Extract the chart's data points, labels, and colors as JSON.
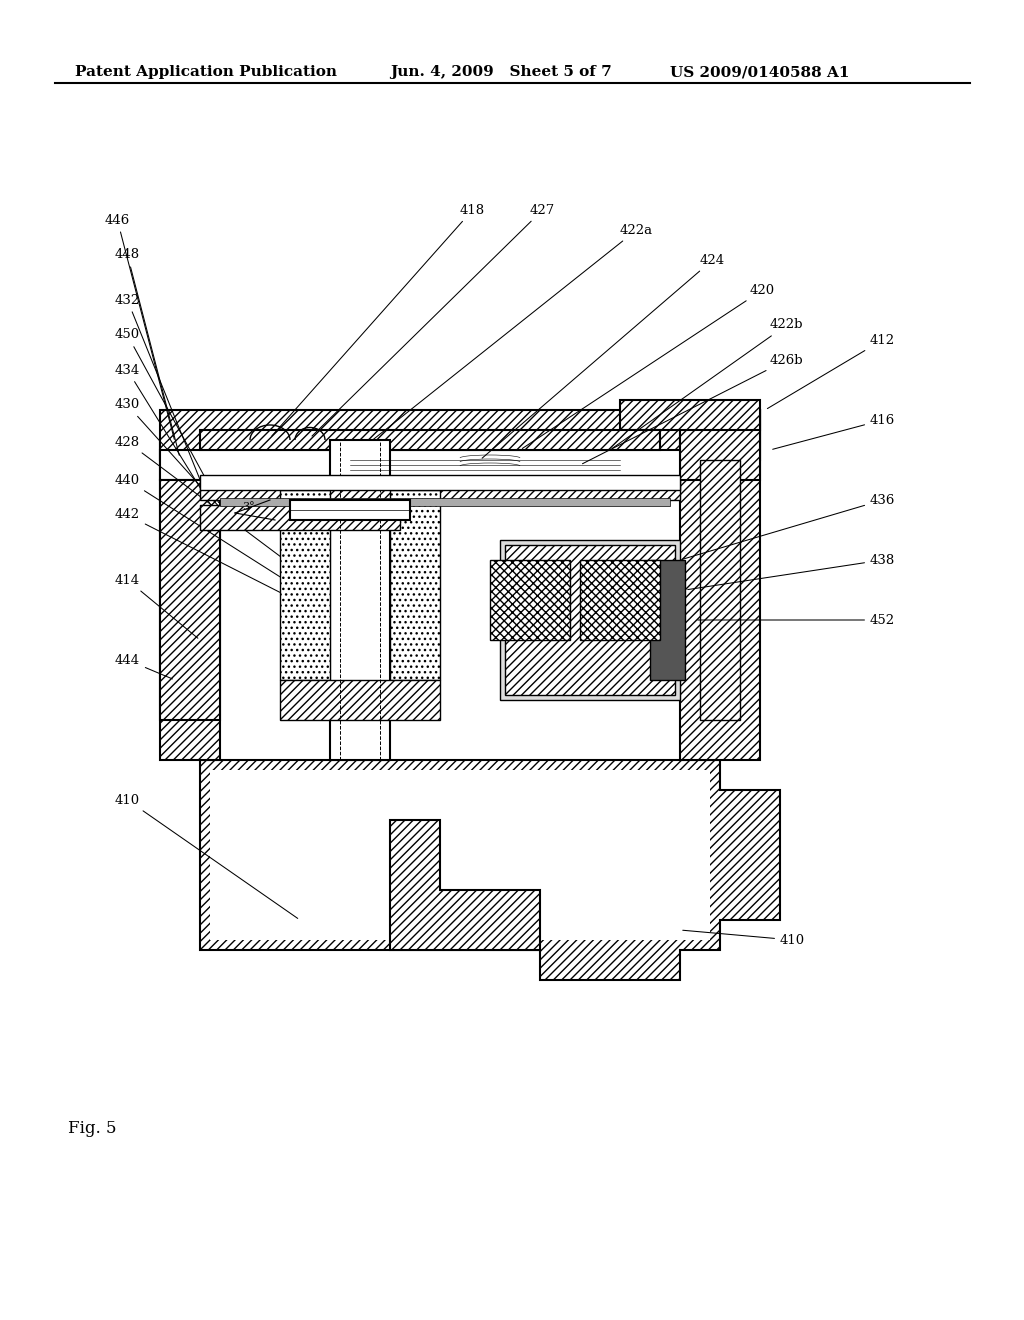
{
  "title_left": "Patent Application Publication",
  "title_mid": "Jun. 4, 2009   Sheet 5 of 7",
  "title_right": "US 2009/0140588 A1",
  "fig_label": "Fig. 5",
  "bg_color": "#ffffff",
  "line_color": "#000000",
  "hatch_color": "#000000",
  "labels": [
    "410",
    "412",
    "414",
    "416",
    "418",
    "420",
    "422a",
    "422b",
    "424",
    "426b",
    "427",
    "428",
    "430",
    "432",
    "434",
    "436",
    "438",
    "440",
    "442",
    "444",
    "446",
    "448",
    "450",
    "452"
  ],
  "title_fontsize": 11,
  "fig_label_fontsize": 12
}
